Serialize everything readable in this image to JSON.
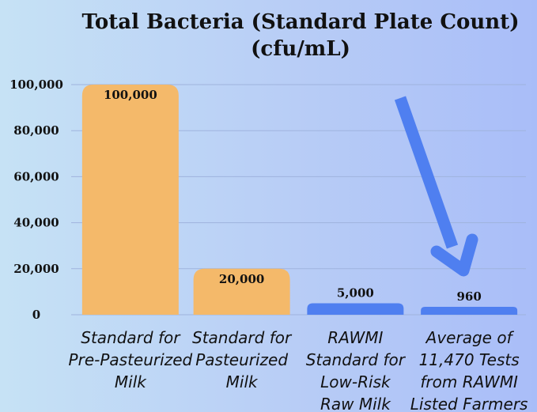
{
  "chart_data": {
    "type": "bar",
    "title": [
      "Total Bacteria (Standard Plate Count)",
      "(cfu/mL)"
    ],
    "categories": [
      [
        "Standard for",
        "Pre-Pasteurized",
        "Milk"
      ],
      [
        "Standard for",
        "Pasteurized",
        "Milk"
      ],
      [
        "RAWMI",
        "Standard for",
        "Low-Risk",
        "Raw Milk"
      ],
      [
        "Average of",
        "11,470 Tests",
        "from RAWMI",
        "Listed Farmers"
      ]
    ],
    "values": [
      100000,
      20000,
      5000,
      960
    ],
    "data_labels": [
      "100,000",
      "20,000",
      "5,000",
      "960"
    ],
    "yticks": [
      0,
      20000,
      40000,
      60000,
      80000,
      100000
    ],
    "ytick_labels": [
      "0",
      "20,000",
      "40,000",
      "60,000",
      "80,000",
      "100,000"
    ],
    "ylim": [
      0,
      100000
    ],
    "xlabel": "",
    "ylabel": "",
    "grid": true,
    "colors": {
      "bar_orange": "#f4b96a",
      "bar_blue": "#4f7ff0",
      "arrow": "#4f7ff0"
    },
    "bar_colors": [
      "bar_orange",
      "bar_orange",
      "bar_blue",
      "bar_blue"
    ],
    "annotation": "arrow-pointing-to-last-bar"
  }
}
